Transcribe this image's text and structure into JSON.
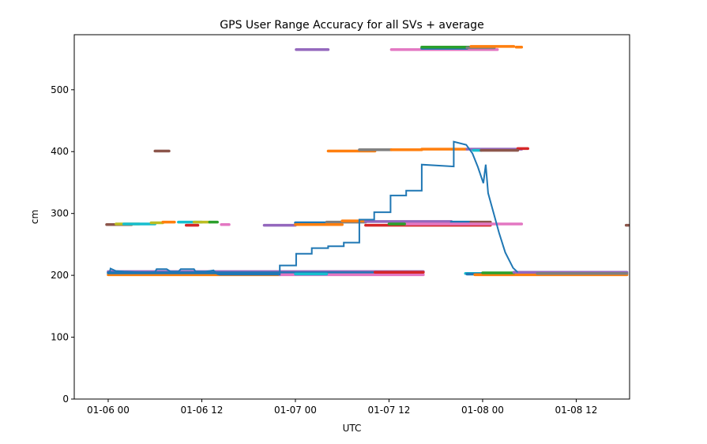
{
  "chart_data": {
    "type": "line",
    "title": "GPS User Range Accuracy for all SVs + average",
    "xlabel": "UTC",
    "ylabel": "cm",
    "x_units": "hours since 01-06 00",
    "xlim": [
      -4.35,
      66.84
    ],
    "ylim": [
      0,
      589
    ],
    "x_ticks": [
      0,
      12,
      24,
      36,
      48,
      60
    ],
    "x_tick_labels": [
      "01-06 00",
      "01-06 12",
      "01-07 00",
      "01-07 12",
      "01-08 00",
      "01-08 12"
    ],
    "y_ticks": [
      0,
      100,
      200,
      300,
      400,
      500
    ],
    "y_tick_labels": [
      "0",
      "100",
      "200",
      "300",
      "400",
      "500"
    ],
    "grid": false,
    "sv_segments": [
      {
        "x": [
          0,
          40.4
        ],
        "y": 206,
        "color": "#9467bd"
      },
      {
        "x": [
          0,
          22
        ],
        "y": 201,
        "color": "#ff7f0e"
      },
      {
        "x": [
          0,
          40.2
        ],
        "y": 204,
        "color": "#1f77b4"
      },
      {
        "x": [
          22,
          40.4
        ],
        "y": 201,
        "color": "#e377c2"
      },
      {
        "x": [
          24,
          28
        ],
        "y": 202,
        "color": "#17becf"
      },
      {
        "x": [
          34.2,
          40.4
        ],
        "y": 205,
        "color": "#d62728"
      },
      {
        "x": [
          45.8,
          52
        ],
        "y": 203,
        "color": "#17becf"
      },
      {
        "x": [
          46,
          50
        ],
        "y": 202,
        "color": "#1f77b4"
      },
      {
        "x": [
          47,
          66.5
        ],
        "y": 201,
        "color": "#ff7f0e"
      },
      {
        "x": [
          48,
          52
        ],
        "y": 204,
        "color": "#2ca02c"
      },
      {
        "x": [
          52,
          66.5
        ],
        "y": 205,
        "color": "#9467bd"
      },
      {
        "x": [
          55,
          66.5
        ],
        "y": 203,
        "color": "#7f7f7f"
      },
      {
        "x": [
          -0.2,
          3
        ],
        "y": 282,
        "color": "#8c564b"
      },
      {
        "x": [
          1,
          4
        ],
        "y": 283,
        "color": "#bcbd22"
      },
      {
        "x": [
          2,
          6
        ],
        "y": 283,
        "color": "#17becf"
      },
      {
        "x": [
          5.5,
          7
        ],
        "y": 285,
        "color": "#bcbd22"
      },
      {
        "x": [
          7,
          8.5
        ],
        "y": 286,
        "color": "#ff7f0e"
      },
      {
        "x": [
          9,
          12
        ],
        "y": 286,
        "color": "#17becf"
      },
      {
        "x": [
          11,
          13
        ],
        "y": 286,
        "color": "#bcbd22"
      },
      {
        "x": [
          13,
          14
        ],
        "y": 286,
        "color": "#2ca02c"
      },
      {
        "x": [
          10,
          11.5
        ],
        "y": 281,
        "color": "#d62728"
      },
      {
        "x": [
          14.5,
          15.5
        ],
        "y": 282,
        "color": "#e377c2"
      },
      {
        "x": [
          20,
          24
        ],
        "y": 281,
        "color": "#9467bd"
      },
      {
        "x": [
          24,
          28
        ],
        "y": 285,
        "color": "#1f77b4"
      },
      {
        "x": [
          28,
          33
        ],
        "y": 286,
        "color": "#7f7f7f"
      },
      {
        "x": [
          24,
          30
        ],
        "y": 282,
        "color": "#ff7f0e"
      },
      {
        "x": [
          30,
          33
        ],
        "y": 288,
        "color": "#ff7f0e"
      },
      {
        "x": [
          33,
          44
        ],
        "y": 287,
        "color": "#9467bd"
      },
      {
        "x": [
          44,
          46.5
        ],
        "y": 286,
        "color": "#1f77b4"
      },
      {
        "x": [
          46.5,
          49
        ],
        "y": 286,
        "color": "#8c564b"
      },
      {
        "x": [
          33,
          49
        ],
        "y": 281,
        "color": "#d62728"
      },
      {
        "x": [
          38,
          53
        ],
        "y": 283,
        "color": "#e377c2"
      },
      {
        "x": [
          36,
          38
        ],
        "y": 283,
        "color": "#2ca02c"
      },
      {
        "x": [
          66.4,
          66.7
        ],
        "y": 281,
        "color": "#8c564b"
      },
      {
        "x": [
          6,
          7.8
        ],
        "y": 401,
        "color": "#8c564b"
      },
      {
        "x": [
          28.2,
          34.2
        ],
        "y": 401,
        "color": "#ff7f0e"
      },
      {
        "x": [
          32.2,
          36.3
        ],
        "y": 403,
        "color": "#7f7f7f"
      },
      {
        "x": [
          36.3,
          40.2
        ],
        "y": 403,
        "color": "#ff7f0e"
      },
      {
        "x": [
          40.2,
          46
        ],
        "y": 404,
        "color": "#ff7f0e"
      },
      {
        "x": [
          46,
          53
        ],
        "y": 404,
        "color": "#9467bd"
      },
      {
        "x": [
          52.5,
          53.8
        ],
        "y": 405,
        "color": "#d62728"
      },
      {
        "x": [
          46.8,
          47.8
        ],
        "y": 402,
        "color": "#17becf"
      },
      {
        "x": [
          47.8,
          52.5
        ],
        "y": 402,
        "color": "#8c564b"
      },
      {
        "x": [
          24.1,
          28.2
        ],
        "y": 565,
        "color": "#9467bd"
      },
      {
        "x": [
          36.3,
          49.9
        ],
        "y": 565,
        "color": "#e377c2"
      },
      {
        "x": [
          40.2,
          46
        ],
        "y": 567,
        "color": "#1f77b4"
      },
      {
        "x": [
          40.2,
          46.5
        ],
        "y": 569,
        "color": "#2ca02c"
      },
      {
        "x": [
          46,
          49.5
        ],
        "y": 568,
        "color": "#7f7f7f"
      },
      {
        "x": [
          46.5,
          52
        ],
        "y": 570,
        "color": "#ff7f0e"
      },
      {
        "x": [
          52.3,
          53
        ],
        "y": 569,
        "color": "#ff7f0e"
      }
    ],
    "average": {
      "name": "average",
      "color": "#1f77b4",
      "x": [
        -0.1,
        0.2,
        0.3,
        1,
        2,
        4,
        6,
        6.2,
        7.5,
        8,
        9,
        9.3,
        11,
        11.2,
        12.5,
        13.5,
        14,
        14.3,
        15,
        22,
        22,
        24.1,
        24.1,
        26.1,
        26.1,
        28.2,
        28.2,
        30.2,
        30.2,
        32.2,
        32.2,
        34.1,
        34.1,
        36.2,
        36.2,
        38.2,
        38.2,
        40.2,
        40.2,
        44.3,
        44.3,
        45.9,
        46.7,
        47.4,
        48.1,
        48.4,
        48.7,
        49.4,
        50.1,
        50.9,
        51.9,
        52.5
      ],
      "y": [
        205,
        205,
        211,
        207,
        206,
        205,
        205,
        210,
        210,
        206,
        206,
        210,
        210,
        206,
        206,
        208,
        202,
        201,
        201,
        201,
        216,
        216,
        235,
        235,
        244,
        244,
        247,
        247,
        253,
        253,
        290,
        290,
        302,
        302,
        329,
        329,
        337,
        337,
        379,
        376,
        416,
        411,
        397,
        375,
        349,
        379,
        333,
        301,
        269,
        237,
        212,
        205
      ]
    }
  }
}
